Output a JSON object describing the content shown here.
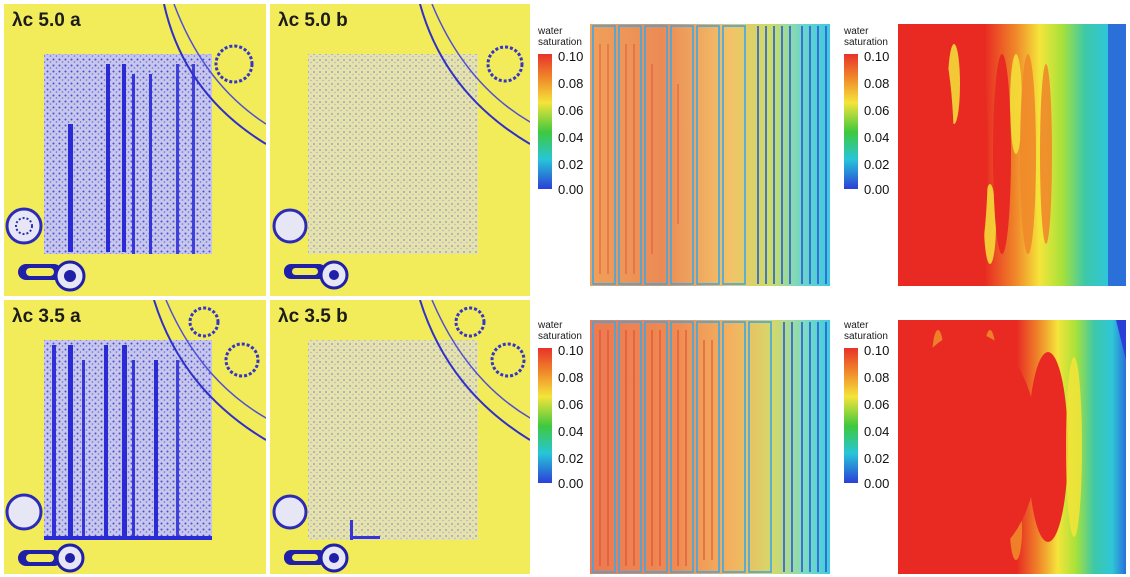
{
  "panels": [
    {
      "label": "λc 5.0 a"
    },
    {
      "label": "λc 5.0 b"
    },
    {
      "label": "λc 3.5 a"
    },
    {
      "label": "λc 3.5 b"
    }
  ],
  "legend": {
    "title_line1": "water",
    "title_line2": "saturation",
    "ticks": [
      "0.10",
      "0.08",
      "0.06",
      "0.04",
      "0.02",
      "0.00"
    ]
  },
  "colors": {
    "neutron_background": "#f2ec5a",
    "water_blue": "#2b2bd6",
    "scale_high": "#e8322a",
    "scale_mid": "#f5e43a",
    "scale_low_mid": "#3ec83e",
    "scale_low": "#2b3fd8"
  }
}
